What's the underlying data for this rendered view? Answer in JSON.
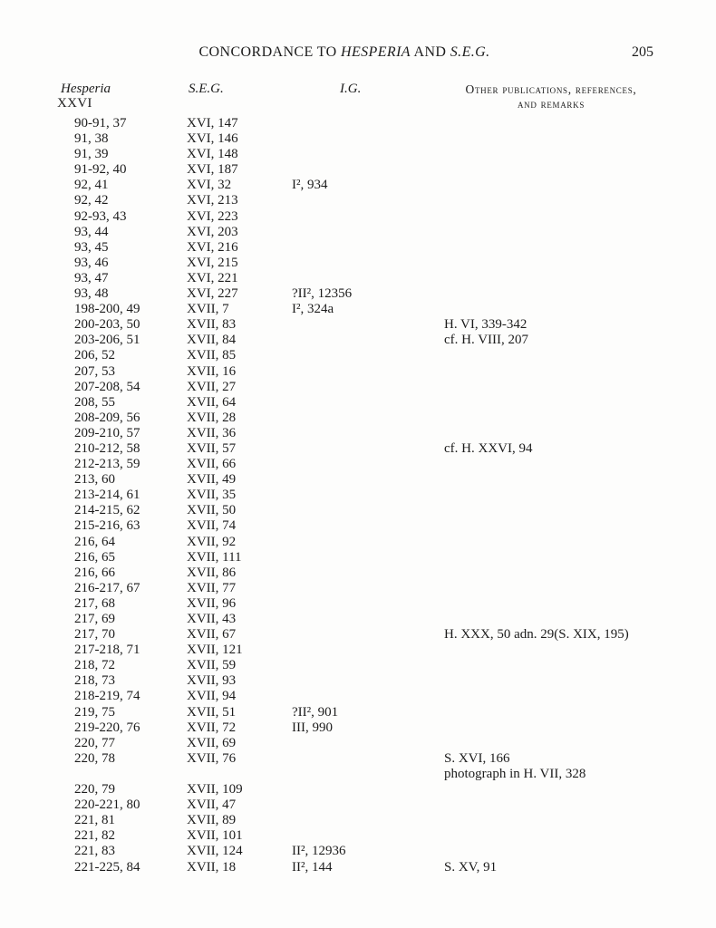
{
  "header": {
    "title_prefix": "CONCORDANCE TO ",
    "title_italic1": "HESPERIA",
    "title_mid": " AND ",
    "title_italic2": "S.E.G.",
    "page_number": "205"
  },
  "columns": {
    "hesperia_label": "Hesperia",
    "hesperia_volume": "XXVI",
    "seg_label": "S.E.G.",
    "ig_label": "I.G.",
    "other_label_line1": "Other publications, references,",
    "other_label_line2": "and remarks"
  },
  "rows": [
    {
      "hesperia": "90-91, 37",
      "seg": "XVI, 147",
      "ig": "",
      "remarks": ""
    },
    {
      "hesperia": "91, 38",
      "seg": "XVI, 146",
      "ig": "",
      "remarks": ""
    },
    {
      "hesperia": "91, 39",
      "seg": "XVI, 148",
      "ig": "",
      "remarks": ""
    },
    {
      "hesperia": "91-92, 40",
      "seg": "XVI, 187",
      "ig": "",
      "remarks": ""
    },
    {
      "hesperia": "92, 41",
      "seg": "XVI, 32",
      "ig": "I², 934",
      "remarks": ""
    },
    {
      "hesperia": "92, 42",
      "seg": "XVI, 213",
      "ig": "",
      "remarks": ""
    },
    {
      "hesperia": "92-93, 43",
      "seg": "XVI, 223",
      "ig": "",
      "remarks": ""
    },
    {
      "hesperia": "93, 44",
      "seg": "XVI, 203",
      "ig": "",
      "remarks": ""
    },
    {
      "hesperia": "93, 45",
      "seg": "XVI, 216",
      "ig": "",
      "remarks": ""
    },
    {
      "hesperia": "93, 46",
      "seg": "XVI, 215",
      "ig": "",
      "remarks": ""
    },
    {
      "hesperia": "93, 47",
      "seg": "XVI, 221",
      "ig": "",
      "remarks": ""
    },
    {
      "hesperia": "93, 48",
      "seg": "XVI, 227",
      "ig": "?II², 12356",
      "remarks": ""
    },
    {
      "hesperia": "198-200, 49",
      "seg": "XVII, 7",
      "ig": "I², 324a",
      "remarks": ""
    },
    {
      "hesperia": "200-203, 50",
      "seg": "XVII, 83",
      "ig": "",
      "remarks": "H. VI, 339-342"
    },
    {
      "hesperia": "203-206, 51",
      "seg": "XVII, 84",
      "ig": "",
      "remarks": "cf. H. VIII, 207"
    },
    {
      "hesperia": "206, 52",
      "seg": "XVII, 85",
      "ig": "",
      "remarks": ""
    },
    {
      "hesperia": "207, 53",
      "seg": "XVII, 16",
      "ig": "",
      "remarks": ""
    },
    {
      "hesperia": "207-208, 54",
      "seg": "XVII, 27",
      "ig": "",
      "remarks": ""
    },
    {
      "hesperia": "208, 55",
      "seg": "XVII, 64",
      "ig": "",
      "remarks": ""
    },
    {
      "hesperia": "208-209, 56",
      "seg": "XVII, 28",
      "ig": "",
      "remarks": ""
    },
    {
      "hesperia": "209-210, 57",
      "seg": "XVII, 36",
      "ig": "",
      "remarks": ""
    },
    {
      "hesperia": "210-212, 58",
      "seg": "XVII, 57",
      "ig": "",
      "remarks": "cf. H. XXVI, 94"
    },
    {
      "hesperia": "212-213, 59",
      "seg": "XVII, 66",
      "ig": "",
      "remarks": ""
    },
    {
      "hesperia": "213, 60",
      "seg": "XVII, 49",
      "ig": "",
      "remarks": ""
    },
    {
      "hesperia": "213-214, 61",
      "seg": "XVII, 35",
      "ig": "",
      "remarks": ""
    },
    {
      "hesperia": "214-215, 62",
      "seg": "XVII, 50",
      "ig": "",
      "remarks": ""
    },
    {
      "hesperia": "215-216, 63",
      "seg": "XVII, 74",
      "ig": "",
      "remarks": ""
    },
    {
      "hesperia": "216, 64",
      "seg": "XVII, 92",
      "ig": "",
      "remarks": ""
    },
    {
      "hesperia": "216, 65",
      "seg": "XVII, 111",
      "ig": "",
      "remarks": ""
    },
    {
      "hesperia": "216, 66",
      "seg": "XVII, 86",
      "ig": "",
      "remarks": ""
    },
    {
      "hesperia": "216-217, 67",
      "seg": "XVII, 77",
      "ig": "",
      "remarks": ""
    },
    {
      "hesperia": "217, 68",
      "seg": "XVII, 96",
      "ig": "",
      "remarks": ""
    },
    {
      "hesperia": "217, 69",
      "seg": "XVII, 43",
      "ig": "",
      "remarks": ""
    },
    {
      "hesperia": "217, 70",
      "seg": "XVII, 67",
      "ig": "",
      "remarks": "H. XXX, 50 adn. 29(S. XIX, 195)"
    },
    {
      "hesperia": "217-218, 71",
      "seg": "XVII, 121",
      "ig": "",
      "remarks": ""
    },
    {
      "hesperia": "218, 72",
      "seg": "XVII, 59",
      "ig": "",
      "remarks": ""
    },
    {
      "hesperia": "218, 73",
      "seg": "XVII, 93",
      "ig": "",
      "remarks": ""
    },
    {
      "hesperia": "218-219, 74",
      "seg": "XVII, 94",
      "ig": "",
      "remarks": ""
    },
    {
      "hesperia": "219, 75",
      "seg": "XVII, 51",
      "ig": "?II², 901",
      "remarks": ""
    },
    {
      "hesperia": "219-220, 76",
      "seg": "XVII, 72",
      "ig": "III, 990",
      "remarks": ""
    },
    {
      "hesperia": "220, 77",
      "seg": "XVII, 69",
      "ig": "",
      "remarks": ""
    },
    {
      "hesperia": "220, 78",
      "seg": "XVII, 76",
      "ig": "",
      "remarks": "S. XVI, 166",
      "remarks2": "photograph in H. VII, 328"
    },
    {
      "hesperia": "220, 79",
      "seg": "XVII, 109",
      "ig": "",
      "remarks": ""
    },
    {
      "hesperia": "220-221, 80",
      "seg": "XVII, 47",
      "ig": "",
      "remarks": ""
    },
    {
      "hesperia": "221, 81",
      "seg": "XVII, 89",
      "ig": "",
      "remarks": ""
    },
    {
      "hesperia": "221, 82",
      "seg": "XVII, 101",
      "ig": "",
      "remarks": ""
    },
    {
      "hesperia": "221, 83",
      "seg": "XVII, 124",
      "ig": "II², 12936",
      "remarks": ""
    },
    {
      "hesperia": "221-225, 84",
      "seg": "XVII, 18",
      "ig": "II², 144",
      "remarks": "S. XV, 91"
    }
  ]
}
